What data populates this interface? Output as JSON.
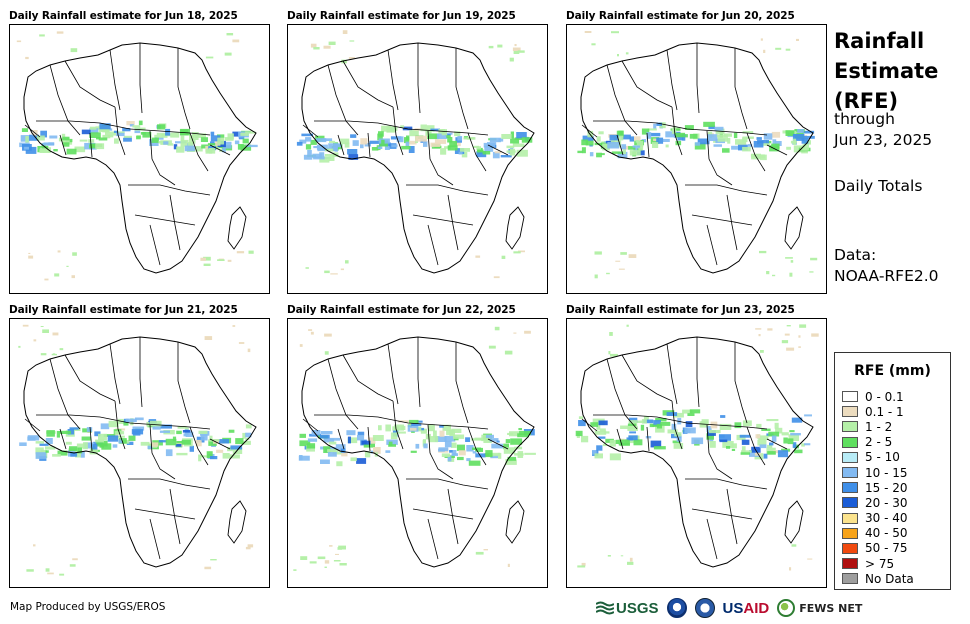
{
  "panels": [
    {
      "title": "Daily Rainfall estimate for Jun 18, 2025",
      "map": "africa-rainfall-map-jun-18"
    },
    {
      "title": "Daily Rainfall estimate for Jun 19, 2025",
      "map": "africa-rainfall-map-jun-19"
    },
    {
      "title": "Daily Rainfall estimate for Jun 20, 2025",
      "map": "africa-rainfall-map-jun-20"
    },
    {
      "title": "Daily Rainfall estimate for Jun 21, 2025",
      "map": "africa-rainfall-map-jun-21"
    },
    {
      "title": "Daily Rainfall estimate for Jun 22, 2025",
      "map": "africa-rainfall-map-jun-22"
    },
    {
      "title": "Daily Rainfall estimate for Jun 23, 2025",
      "map": "africa-rainfall-map-jun-23"
    }
  ],
  "side": {
    "title_line1": "Rainfall",
    "title_line2": "Estimate",
    "title_line3": "(RFE)",
    "through_label": "through",
    "through_date": "Jun 23, 2025",
    "totals_label": "Daily Totals",
    "data_label": "Data:",
    "data_source": "NOAA-RFE2.0"
  },
  "legend": {
    "title": "RFE (mm)",
    "items": [
      {
        "label": "0 - 0.1",
        "color": "#ffffff"
      },
      {
        "label": "0.1 - 1",
        "color": "#ecdcbf"
      },
      {
        "label": "1 - 2",
        "color": "#b5f0a8"
      },
      {
        "label": "2 - 5",
        "color": "#5fdf5f"
      },
      {
        "label": "5 - 10",
        "color": "#b8ecf7"
      },
      {
        "label": "10 - 15",
        "color": "#82baf2"
      },
      {
        "label": "15 - 20",
        "color": "#3f8fe8"
      },
      {
        "label": "20 - 30",
        "color": "#1a5cd6"
      },
      {
        "label": "30 - 40",
        "color": "#fbe38d"
      },
      {
        "label": "40 - 50",
        "color": "#f7a31a"
      },
      {
        "label": "50 - 75",
        "color": "#f04a10"
      },
      {
        "label": "> 75",
        "color": "#b01010"
      },
      {
        "label": "No Data",
        "color": "#9e9e9e"
      }
    ]
  },
  "footer": {
    "credit": "Map Produced by USGS/EROS",
    "logo_usgs": "USGS",
    "logo_usaid_us": "US",
    "logo_usaid_aid": "AID",
    "logo_fews": "FEWS NET"
  }
}
